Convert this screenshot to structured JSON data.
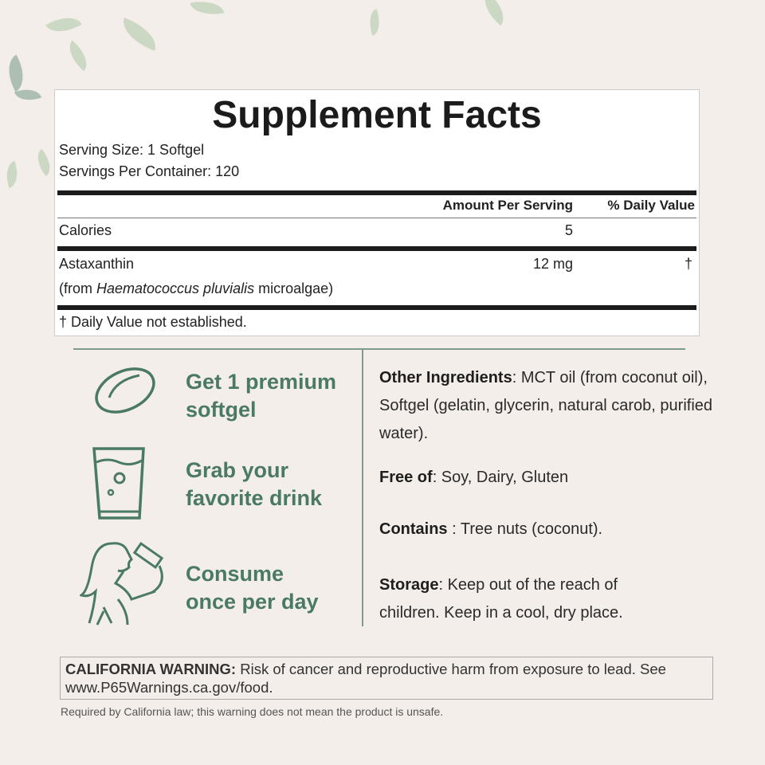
{
  "colors": {
    "accent": "#4b7a64",
    "background": "#f3eee9"
  },
  "facts": {
    "title": "Supplement Facts",
    "serving_size": "Serving Size: 1 Softgel",
    "servings_per_container": "Servings Per Container: 120",
    "col_amount": "Amount Per Serving",
    "col_dv": "% Daily Value",
    "rows": [
      {
        "name": "Calories",
        "amount": "5",
        "dv": ""
      },
      {
        "name": "Astaxanthin",
        "amount": "12 mg",
        "dv": "†",
        "source_prefix": "(from ",
        "source_italic": "Haematococcus pluvialis",
        "source_suffix": " microalgae)"
      }
    ],
    "footnote": "† Daily Value not established."
  },
  "steps": [
    {
      "icon": "softgel-icon",
      "line1": "Get 1 premium",
      "line2": "softgel"
    },
    {
      "icon": "glass-icon",
      "line1": "Grab your",
      "line2": "favorite drink"
    },
    {
      "icon": "woman-drinking-icon",
      "line1": "Consume",
      "line2": "once per day"
    }
  ],
  "info": [
    {
      "label": "Other Ingredients",
      "text": ": MCT oil (from coconut oil), Softgel (gelatin, glycerin, natural carob, purified water)."
    },
    {
      "label": "Free of",
      "text": ": Soy, Dairy, Gluten"
    },
    {
      "label": "Contains",
      "text": " : Tree nuts (coconut)."
    },
    {
      "label": "Storage",
      "text": ": Keep out of the reach of children. Keep in a cool, dry place."
    }
  ],
  "warning": {
    "label": "CALIFORNIA WARNING:",
    "text": " Risk of cancer and reproductive harm from exposure to lead. See www.P65Warnings.ca.gov/food."
  },
  "required_note": "Required by California law; this warning does not mean the product is unsafe."
}
